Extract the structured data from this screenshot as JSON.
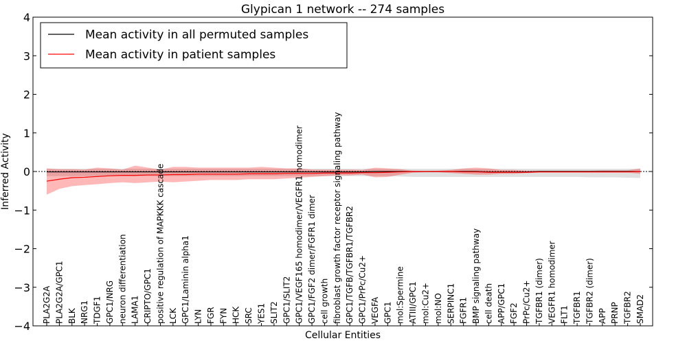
{
  "chart_data": {
    "type": "line",
    "title": "Glypican 1 network -- 274 samples",
    "xlabel": "Cellular Entities",
    "ylabel": "Inferred Activity",
    "ylim": [
      -4,
      4
    ],
    "yticks": [
      4,
      3,
      2,
      1,
      0,
      -1,
      -2,
      -3,
      -4
    ],
    "ytick_labels": [
      "4",
      "3",
      "2",
      "1",
      "0",
      "−1",
      "−2",
      "−3",
      "−4"
    ],
    "legend_position": "top-left",
    "grid": false,
    "zero_line": "dotted",
    "categories": [
      "PLA2G2A",
      "PLA2G2A/GPC1",
      "BLK",
      "NRG1",
      "TDGF1",
      "GPC1/NRG",
      "neuron differentiation",
      "LAMA1",
      "CRIPTO/GPC1",
      "positive regulation of MAPKKK cascade",
      "LCK",
      "GPC1/Laminin alpha1",
      "LYN",
      "FGR",
      "FYN",
      "HCK",
      "SRC",
      "YES1",
      "SLIT2",
      "GPC1/SLIT2",
      "GPC1/VEGF165 homodimer/VEGFR1 homodimer",
      "GPC1/FGF2 dimer/FGFR1 dimer",
      "cell growth",
      "fibroblast growth factor receptor signaling pathway",
      "GPC1/TGFB/TGFBR1/TGFBR2",
      "GPC1/PrPc/Cu2+",
      "VEGFA",
      "GPC1",
      "mol:Spermine",
      "ATIII/GPC1",
      "mol:Cu2+",
      "mol:NO",
      "SERPINC1",
      "FGFR1",
      "BMP signaling pathway",
      "cell death",
      "APP/GPC1",
      "FGF2",
      "PrPc/Cu2+",
      "TGFBR1 (dimer)",
      "VEGFR1 homodimer",
      "FLT1",
      "TGFBR1",
      "TGFBR2 (dimer)",
      "APP",
      "PRNP",
      "TGFBR2",
      "SMAD2"
    ],
    "series": [
      {
        "name": "Mean activity in all permuted samples",
        "color": "#000000",
        "band_color": "#bbbbbb",
        "values": [
          -0.01,
          -0.01,
          -0.01,
          -0.01,
          -0.01,
          -0.01,
          -0.01,
          -0.01,
          -0.01,
          -0.01,
          -0.01,
          -0.01,
          -0.01,
          -0.01,
          -0.01,
          -0.01,
          -0.01,
          -0.01,
          -0.01,
          -0.01,
          -0.01,
          -0.01,
          -0.01,
          -0.01,
          -0.01,
          -0.01,
          0.0,
          0.0,
          0.0,
          0.0,
          0.0,
          0.0,
          0.0,
          0.0,
          0.0,
          -0.01,
          -0.01,
          -0.01,
          -0.01,
          0.0,
          0.0,
          0.0,
          0.0,
          0.0,
          0.0,
          0.0,
          0.0,
          0.0
        ],
        "upper": [
          0.07,
          0.07,
          0.07,
          0.07,
          0.07,
          0.07,
          0.07,
          0.07,
          0.07,
          0.07,
          0.07,
          0.07,
          0.07,
          0.07,
          0.07,
          0.07,
          0.07,
          0.07,
          0.07,
          0.07,
          0.07,
          0.07,
          0.07,
          0.07,
          0.07,
          0.07,
          0.07,
          0.07,
          0.07,
          0.07,
          0.07,
          0.07,
          0.07,
          0.07,
          0.07,
          0.07,
          0.07,
          0.07,
          0.07,
          0.07,
          0.07,
          0.07,
          0.07,
          0.07,
          0.07,
          0.07,
          0.07,
          0.07
        ],
        "lower": [
          -0.12,
          -0.12,
          -0.12,
          -0.12,
          -0.12,
          -0.12,
          -0.12,
          -0.12,
          -0.12,
          -0.12,
          -0.12,
          -0.12,
          -0.12,
          -0.12,
          -0.12,
          -0.12,
          -0.12,
          -0.12,
          -0.12,
          -0.12,
          -0.12,
          -0.12,
          -0.12,
          -0.12,
          -0.12,
          -0.12,
          -0.12,
          -0.12,
          -0.13,
          -0.14,
          -0.14,
          -0.14,
          -0.14,
          -0.14,
          -0.14,
          -0.14,
          -0.14,
          -0.14,
          -0.14,
          -0.14,
          -0.14,
          -0.14,
          -0.14,
          -0.15,
          -0.15,
          -0.15,
          -0.16,
          -0.17
        ]
      },
      {
        "name": "Mean activity in patient samples",
        "color": "#ff0000",
        "band_color": "#ff0000",
        "values": [
          -0.25,
          -0.2,
          -0.16,
          -0.15,
          -0.13,
          -0.11,
          -0.1,
          -0.1,
          -0.09,
          -0.09,
          -0.08,
          -0.08,
          -0.07,
          -0.07,
          -0.07,
          -0.07,
          -0.06,
          -0.06,
          -0.06,
          -0.05,
          -0.05,
          -0.05,
          -0.04,
          -0.04,
          -0.04,
          -0.03,
          -0.03,
          -0.02,
          -0.01,
          0.0,
          0.0,
          0.0,
          0.0,
          -0.01,
          -0.01,
          -0.02,
          -0.02,
          -0.02,
          -0.02,
          -0.01,
          -0.01,
          -0.01,
          -0.01,
          -0.01,
          -0.01,
          -0.01,
          -0.01,
          0.0
        ],
        "upper": [
          0.08,
          0.06,
          0.06,
          0.05,
          0.1,
          0.08,
          0.05,
          0.15,
          0.1,
          0.05,
          0.12,
          0.12,
          0.1,
          0.1,
          0.1,
          0.1,
          0.1,
          0.12,
          0.1,
          0.08,
          0.08,
          0.05,
          0.05,
          0.05,
          0.05,
          0.04,
          0.1,
          0.08,
          0.06,
          0.02,
          0.01,
          0.02,
          0.04,
          0.08,
          0.1,
          0.08,
          0.04,
          0.04,
          0.02,
          0.02,
          0.02,
          0.02,
          0.02,
          0.02,
          0.03,
          0.03,
          0.03,
          0.08
        ],
        "lower": [
          -0.6,
          -0.45,
          -0.38,
          -0.35,
          -0.33,
          -0.3,
          -0.28,
          -0.3,
          -0.28,
          -0.26,
          -0.28,
          -0.26,
          -0.24,
          -0.22,
          -0.22,
          -0.22,
          -0.2,
          -0.2,
          -0.2,
          -0.18,
          -0.16,
          -0.14,
          -0.12,
          -0.1,
          -0.1,
          -0.08,
          -0.15,
          -0.14,
          -0.08,
          -0.03,
          -0.02,
          -0.02,
          -0.04,
          -0.06,
          -0.08,
          -0.08,
          -0.06,
          -0.06,
          -0.04,
          -0.03,
          -0.03,
          -0.03,
          -0.03,
          -0.03,
          -0.03,
          -0.03,
          -0.03,
          -0.06
        ]
      }
    ]
  }
}
